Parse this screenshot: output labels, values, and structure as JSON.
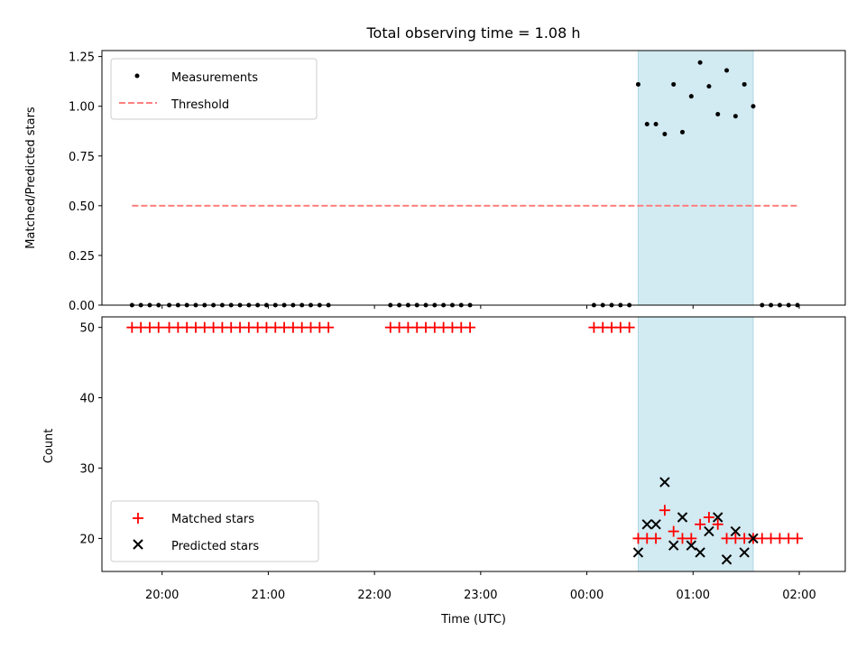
{
  "title": "Total observing time = 1.08 h",
  "colors": {
    "measurement": "#000000",
    "threshold": "#ff7f7f",
    "matched": "#ff0000",
    "predicted": "#000000",
    "shade": "#add8e6"
  },
  "chart_data": [
    {
      "type": "scatter",
      "ylabel": "Matched/Predicted stars",
      "ylim": [
        0,
        1.28
      ],
      "yticks": [
        0,
        0.25,
        0.5,
        0.75,
        1.0,
        1.25
      ],
      "ytick_labels": [
        "0.00",
        "0.25",
        "0.50",
        "0.75",
        "1.00",
        "1.25"
      ],
      "x_time_range": [
        "19:26",
        "02:26"
      ],
      "shaded_interval": [
        "00:29",
        "01:34"
      ],
      "legend": {
        "position": "upper left",
        "entries": [
          "Measurements",
          "Threshold"
        ]
      },
      "threshold": {
        "name": "Threshold",
        "value": 0.5,
        "x_range": [
          "19:43",
          "02:00"
        ],
        "style": "dashed"
      },
      "measurements_zero": {
        "name": "Measurements",
        "times": [
          "19:43",
          "19:48",
          "19:53",
          "19:58",
          "20:04",
          "20:09",
          "20:14",
          "20:19",
          "20:24",
          "20:29",
          "20:34",
          "20:39",
          "20:44",
          "20:49",
          "20:54",
          "20:59",
          "21:04",
          "21:09",
          "21:14",
          "21:19",
          "21:24",
          "21:29",
          "21:34",
          "22:09",
          "22:14",
          "22:19",
          "22:24",
          "22:29",
          "22:34",
          "22:39",
          "22:44",
          "22:49",
          "22:54",
          "00:04",
          "00:09",
          "00:14",
          "00:19",
          "00:24",
          "01:39",
          "01:44",
          "01:49",
          "01:54",
          "01:59"
        ],
        "value": 0
      },
      "measurements": {
        "name": "Measurements",
        "times": [
          "00:29",
          "00:34",
          "00:39",
          "00:44",
          "00:49",
          "00:54",
          "00:59",
          "01:04",
          "01:09",
          "01:14",
          "01:19",
          "01:24",
          "01:29",
          "01:34"
        ],
        "values": [
          1.11,
          0.91,
          0.91,
          0.86,
          1.11,
          0.87,
          1.05,
          1.22,
          1.1,
          0.96,
          1.18,
          0.95,
          1.11,
          1.0
        ]
      }
    },
    {
      "type": "scatter",
      "ylabel": "Count",
      "xlabel": "Time (UTC)",
      "ylim": [
        15.3,
        51.5
      ],
      "yticks": [
        20,
        30,
        40,
        50
      ],
      "ytick_labels": [
        "20",
        "30",
        "40",
        "50"
      ],
      "x_time_range": [
        "19:26",
        "02:26"
      ],
      "xticks": [
        "20:00",
        "21:00",
        "22:00",
        "23:00",
        "00:00",
        "01:00",
        "02:00"
      ],
      "shaded_interval": [
        "00:29",
        "01:34"
      ],
      "legend": {
        "position": "lower left",
        "entries": [
          "Matched stars",
          "Predicted stars"
        ]
      },
      "series": [
        {
          "name": "Matched stars",
          "marker": "+",
          "times": [
            "19:43",
            "19:48",
            "19:53",
            "19:58",
            "20:04",
            "20:09",
            "20:14",
            "20:19",
            "20:24",
            "20:29",
            "20:34",
            "20:39",
            "20:44",
            "20:49",
            "20:54",
            "20:59",
            "21:04",
            "21:09",
            "21:14",
            "21:19",
            "21:24",
            "21:29",
            "21:34",
            "22:09",
            "22:14",
            "22:19",
            "22:24",
            "22:29",
            "22:34",
            "22:39",
            "22:44",
            "22:49",
            "22:54",
            "00:04",
            "00:09",
            "00:14",
            "00:19",
            "00:24",
            "00:29",
            "00:34",
            "00:39",
            "00:44",
            "00:49",
            "00:54",
            "00:59",
            "01:04",
            "01:09",
            "01:14",
            "01:19",
            "01:24",
            "01:29",
            "01:34",
            "01:39",
            "01:44",
            "01:49",
            "01:54",
            "01:59"
          ],
          "values": [
            50,
            50,
            50,
            50,
            50,
            50,
            50,
            50,
            50,
            50,
            50,
            50,
            50,
            50,
            50,
            50,
            50,
            50,
            50,
            50,
            50,
            50,
            50,
            50,
            50,
            50,
            50,
            50,
            50,
            50,
            50,
            50,
            50,
            50,
            50,
            50,
            50,
            50,
            20,
            20,
            20,
            24,
            21,
            20,
            20,
            22,
            23,
            22,
            20,
            20,
            20,
            20,
            20,
            20,
            20,
            20,
            20
          ]
        },
        {
          "name": "Predicted stars",
          "marker": "x",
          "times": [
            "00:29",
            "00:34",
            "00:39",
            "00:44",
            "00:49",
            "00:54",
            "00:59",
            "01:04",
            "01:09",
            "01:14",
            "01:19",
            "01:24",
            "01:29",
            "01:34"
          ],
          "values": [
            18,
            22,
            22,
            28,
            19,
            23,
            19,
            18,
            21,
            23,
            17,
            21,
            18,
            20
          ]
        }
      ]
    }
  ]
}
